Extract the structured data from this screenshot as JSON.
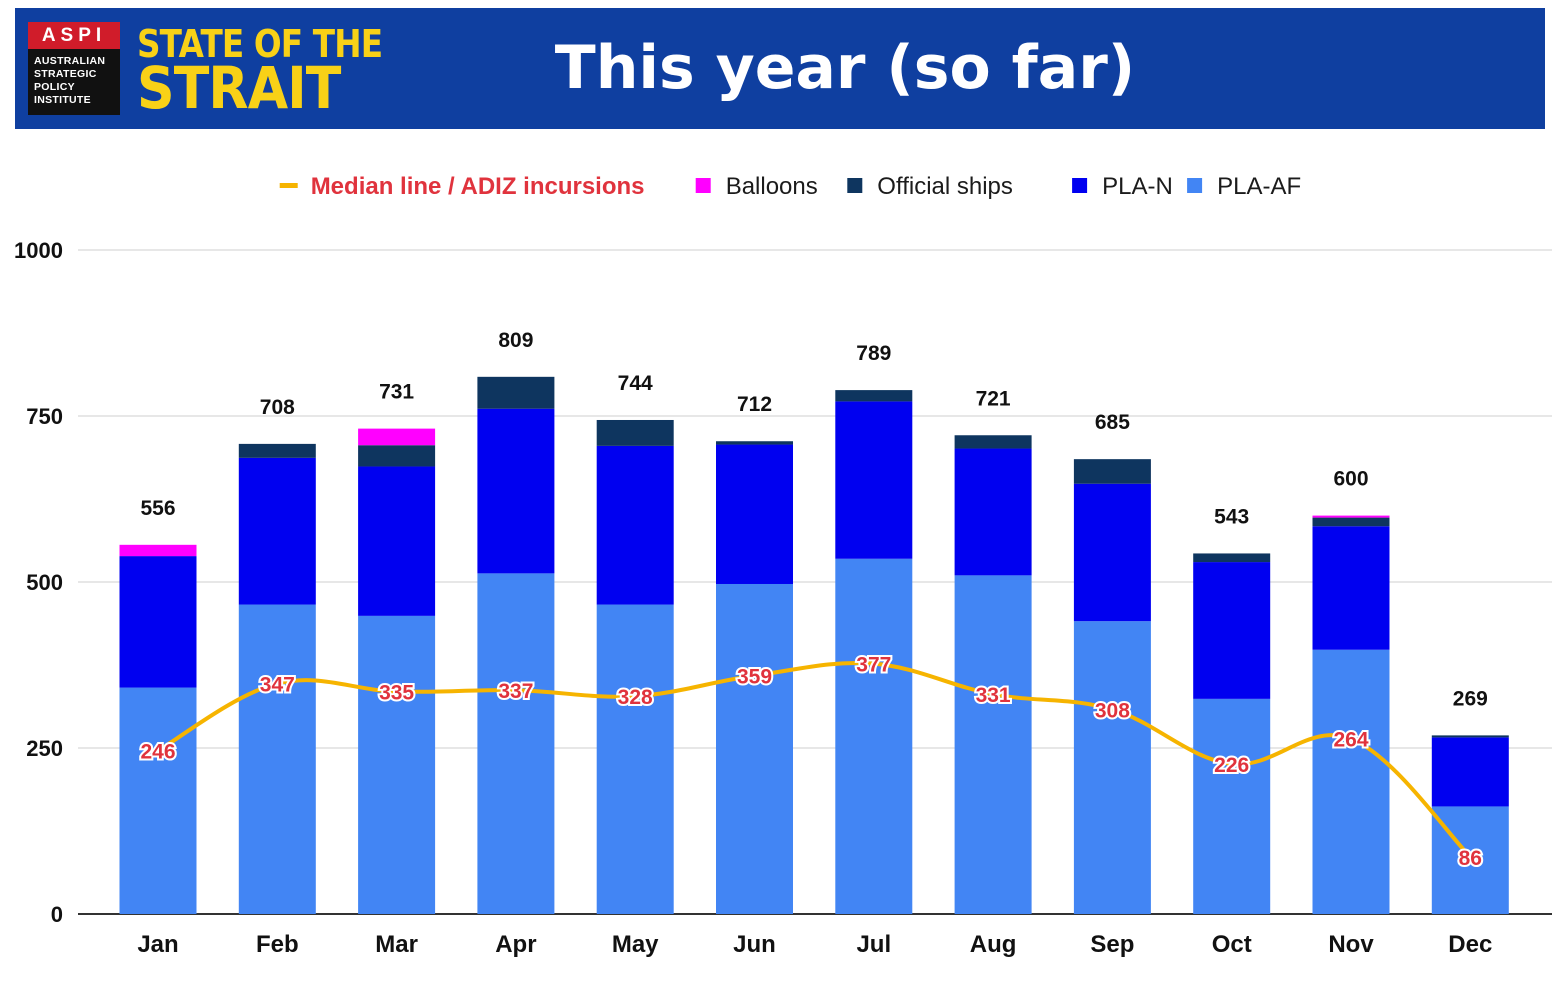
{
  "header": {
    "logo_abbrev": "ASPI",
    "logo_lines": [
      "AUSTRALIAN",
      "STRATEGIC",
      "POLICY",
      "INSTITUTE"
    ],
    "brand_line1": "STATE OF THE",
    "brand_line2": "STRAIT",
    "title": "This year (so far)"
  },
  "colors": {
    "header_bg": "#0f3fa0",
    "brand_yellow": "#f8d117",
    "aspi_red": "#d01c2a",
    "pla_af": "#4285f4",
    "pla_n": "#0000f0",
    "official_ships": "#0e355f",
    "balloons": "#ff00ff",
    "median_line": "#f6b400",
    "median_label": "#e0333d"
  },
  "chart_data": {
    "type": "bar",
    "stacked": true,
    "title": "This year (so far)",
    "categories": [
      "Jan",
      "Feb",
      "Mar",
      "Apr",
      "May",
      "Jun",
      "Jul",
      "Aug",
      "Sep",
      "Oct",
      "Nov",
      "Dec"
    ],
    "series": [
      {
        "name": "PLA-AF",
        "color": "#4285f4",
        "values": [
          341,
          466,
          449,
          513,
          466,
          497,
          535,
          510,
          441,
          324,
          398,
          162
        ]
      },
      {
        "name": "PLA-N",
        "color": "#0000f0",
        "values": [
          198,
          221,
          225,
          248,
          239,
          210,
          237,
          191,
          207,
          206,
          186,
          104
        ]
      },
      {
        "name": "Official ships",
        "color": "#0e355f",
        "values": [
          0,
          21,
          32,
          48,
          39,
          5,
          17,
          20,
          37,
          13,
          13,
          3
        ]
      },
      {
        "name": "Balloons",
        "color": "#ff00ff",
        "values": [
          17,
          0,
          25,
          0,
          0,
          0,
          0,
          0,
          0,
          0,
          3,
          0
        ]
      }
    ],
    "totals": [
      556,
      708,
      731,
      809,
      744,
      712,
      789,
      721,
      685,
      543,
      600,
      269
    ],
    "line_series": {
      "name": "Median line / ADIZ incursions",
      "color": "#f6b400",
      "values": [
        246,
        347,
        335,
        337,
        328,
        359,
        377,
        331,
        308,
        226,
        264,
        86
      ]
    },
    "legend": [
      "Median line / ADIZ incursions",
      "Balloons",
      "Official ships",
      "PLA-N",
      "PLA-AF"
    ],
    "ylim": [
      0,
      1000
    ],
    "yticks": [
      0,
      250,
      500,
      750,
      1000
    ],
    "xlabel": "",
    "ylabel": "",
    "grid": true,
    "legend_position": "top-center"
  }
}
